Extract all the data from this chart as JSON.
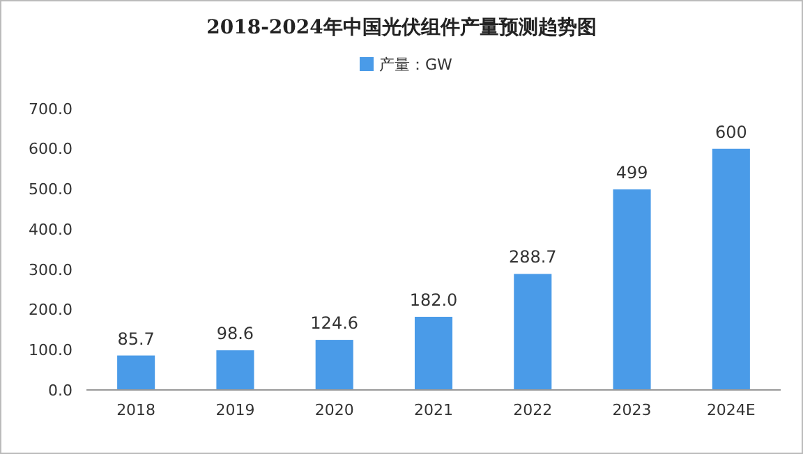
{
  "chart_data": {
    "type": "bar",
    "title": "2018-2024年中国光伏组件产量预测趋势图",
    "categories": [
      "2018",
      "2019",
      "2020",
      "2021",
      "2022",
      "2023",
      "2024E"
    ],
    "series": [
      {
        "name": "产量：GW",
        "color": "#4a9be8",
        "values": [
          85.7,
          98.6,
          124.6,
          182.0,
          288.7,
          499,
          600
        ]
      }
    ],
    "value_labels": [
      "85.7",
      "98.6",
      "124.6",
      "182.0",
      "288.7",
      "499",
      "600"
    ],
    "ylim": [
      0,
      700
    ],
    "yticks": [
      {
        "value": 0,
        "label": "0.0"
      },
      {
        "value": 100,
        "label": "100.0"
      },
      {
        "value": 200,
        "label": "200.0"
      },
      {
        "value": 300,
        "label": "300.0"
      },
      {
        "value": 400,
        "label": "400.0"
      },
      {
        "value": 500,
        "label": "500.0"
      },
      {
        "value": 600,
        "label": "600.0"
      },
      {
        "value": 700,
        "label": "700.0"
      }
    ],
    "legend": "top",
    "grid": false
  }
}
